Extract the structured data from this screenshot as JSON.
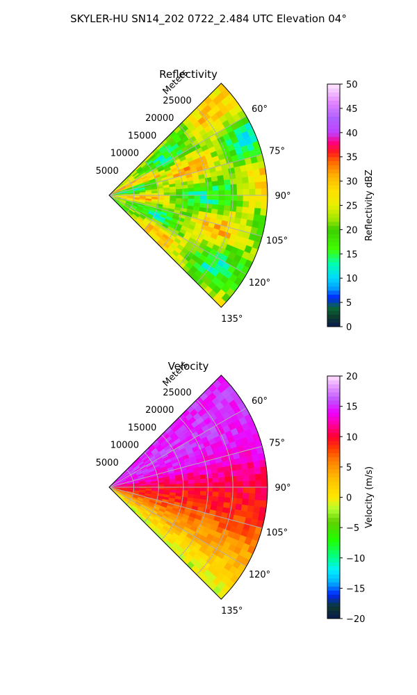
{
  "figure_title": "SKYLER-HU  SN14_202  0722_2.484 UTC Elevation 04°",
  "chart_data": [
    {
      "type": "heatmap",
      "projection": "polar sector",
      "title": "Reflectivity",
      "radial_label": "Meters",
      "radial_ticks": [
        "5000",
        "10000",
        "15000",
        "20000",
        "25000"
      ],
      "radial_tick_values": [
        5000,
        10000,
        15000,
        20000,
        25000
      ],
      "rmax": 32000,
      "azimuth_range_deg": [
        45,
        135
      ],
      "azimuth_ticks": [
        "60°",
        "75°",
        "90°",
        "105°",
        "120°",
        "135°"
      ],
      "azimuth_tick_values": [
        60,
        75,
        90,
        105,
        120,
        135
      ],
      "grid": true,
      "colorbar": {
        "label": "Reflectivity dBZ",
        "min": 0,
        "max": 50,
        "ticks": [
          "0",
          "5",
          "10",
          "15",
          "20",
          "25",
          "30",
          "35",
          "40",
          "45",
          "50"
        ],
        "tick_values": [
          0,
          5,
          10,
          15,
          20,
          25,
          30,
          35,
          40,
          45,
          50
        ],
        "stops": [
          [
            0,
            "#0a1850"
          ],
          [
            2,
            "#0c3b2e"
          ],
          [
            4,
            "#0b6a3a"
          ],
          [
            6,
            "#0026ff"
          ],
          [
            8,
            "#00a0ff"
          ],
          [
            10,
            "#00d8ff"
          ],
          [
            13,
            "#00ffb0"
          ],
          [
            16,
            "#40ff00"
          ],
          [
            20,
            "#3ccf00"
          ],
          [
            22,
            "#9ae600"
          ],
          [
            25,
            "#e8f000"
          ],
          [
            28,
            "#ffe100"
          ],
          [
            31,
            "#ffb300"
          ],
          [
            34,
            "#ff6a00"
          ],
          [
            36,
            "#ff1a1a"
          ],
          [
            38,
            "#ff0080"
          ],
          [
            40,
            "#c040ff"
          ],
          [
            43,
            "#b060ff"
          ],
          [
            46,
            "#e080ff"
          ],
          [
            50,
            "#ffe8ff"
          ]
        ]
      },
      "field_description": "Mostly 18–30 dBZ; banded maxima near 35 dBZ along the northern edge and near azimuths 65–70 and 110–115",
      "typical_range": [
        15,
        32
      ]
    },
    {
      "type": "heatmap",
      "projection": "polar sector",
      "title": "Velocity",
      "radial_label": "Meters",
      "radial_ticks": [
        "5000",
        "10000",
        "15000",
        "20000",
        "25000"
      ],
      "radial_tick_values": [
        5000,
        10000,
        15000,
        20000,
        25000
      ],
      "rmax": 32000,
      "azimuth_range_deg": [
        45,
        135
      ],
      "azimuth_ticks": [
        "60°",
        "75°",
        "90°",
        "105°",
        "120°",
        "135°"
      ],
      "azimuth_tick_values": [
        60,
        75,
        90,
        105,
        120,
        135
      ],
      "grid": true,
      "colorbar": {
        "label": "Velocity (m/s)",
        "min": -20,
        "max": 20,
        "ticks": [
          "−20",
          "−15",
          "−10",
          "−5",
          "0",
          "5",
          "10",
          "15",
          "20"
        ],
        "tick_values": [
          -20,
          -15,
          -10,
          -5,
          0,
          5,
          10,
          15,
          20
        ],
        "stops": [
          [
            -20,
            "#0a1850"
          ],
          [
            -18,
            "#0c3b2e"
          ],
          [
            -16,
            "#0026ff"
          ],
          [
            -14,
            "#00b0ff"
          ],
          [
            -12,
            "#00f0ff"
          ],
          [
            -10,
            "#00ff90"
          ],
          [
            -7,
            "#20ff00"
          ],
          [
            -4,
            "#60d000"
          ],
          [
            -2,
            "#b0ff30"
          ],
          [
            0,
            "#ffe800"
          ],
          [
            3,
            "#ffc000"
          ],
          [
            6,
            "#ff8000"
          ],
          [
            8,
            "#ff4000"
          ],
          [
            10,
            "#ff0030"
          ],
          [
            12,
            "#ff00a0"
          ],
          [
            14,
            "#ee00ff"
          ],
          [
            16,
            "#c050ff"
          ],
          [
            18,
            "#e090ff"
          ],
          [
            20,
            "#ffe0ff"
          ]
        ]
      },
      "field_description": "Positive (12–16 m/s) toward azimuth 45–80; about 10 m/s near 90–105; about 3–6 m/s toward 110–135; near 0 m/s along the 135° edge",
      "azimuth_velocity_profile": [
        [
          45,
          15
        ],
        [
          60,
          15
        ],
        [
          75,
          14
        ],
        [
          82,
          12
        ],
        [
          90,
          10
        ],
        [
          100,
          9
        ],
        [
          108,
          7
        ],
        [
          115,
          5
        ],
        [
          122,
          3
        ],
        [
          128,
          1
        ],
        [
          135,
          -2
        ]
      ]
    }
  ]
}
